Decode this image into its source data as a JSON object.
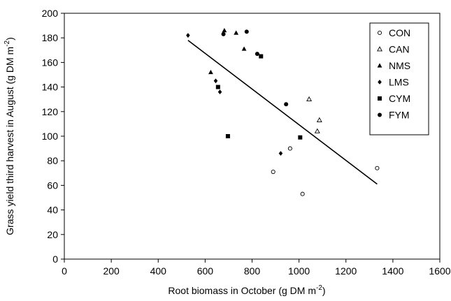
{
  "chart_data": {
    "type": "scatter",
    "title": "",
    "xlabel": "Root biomass in October (g DM m",
    "xlabel_sup": "-2",
    "xlabel_end": ")",
    "ylabel": "Grass yield third harvest in August (g DM m",
    "ylabel_sup": "-2",
    "ylabel_end": ")",
    "xlim": [
      0,
      1600
    ],
    "ylim": [
      0,
      200
    ],
    "xticks": [
      "0",
      "200",
      "400",
      "600",
      "800",
      "1000",
      "1200",
      "1400",
      "1600"
    ],
    "yticks": [
      "0",
      "20",
      "40",
      "60",
      "80",
      "100",
      "120",
      "140",
      "160",
      "180",
      "200"
    ],
    "grid": false,
    "legend_position": "top-right",
    "series": [
      {
        "name": "CON",
        "marker": "open-circle",
        "points": [
          [
            890,
            71
          ],
          [
            962,
            90
          ],
          [
            1015,
            53
          ],
          [
            1333,
            74
          ]
        ]
      },
      {
        "name": "CAN",
        "marker": "open-triangle",
        "points": [
          [
            1043,
            130
          ],
          [
            1087,
            113
          ],
          [
            1078,
            104
          ]
        ]
      },
      {
        "name": "NMS",
        "marker": "filled-triangle",
        "points": [
          [
            624,
            152
          ],
          [
            682,
            186
          ],
          [
            732,
            184
          ],
          [
            766,
            171
          ]
        ]
      },
      {
        "name": "LMS",
        "marker": "filled-diamond",
        "points": [
          [
            527,
            182
          ],
          [
            645,
            145
          ],
          [
            663,
            136
          ],
          [
            922,
            86
          ]
        ]
      },
      {
        "name": "CYM",
        "marker": "filled-square",
        "points": [
          [
            655,
            140
          ],
          [
            697,
            100
          ],
          [
            838,
            165
          ],
          [
            1005,
            99
          ]
        ]
      },
      {
        "name": "FYM",
        "marker": "filled-circle",
        "points": [
          [
            678,
            183
          ],
          [
            777,
            185
          ],
          [
            822,
            167
          ],
          [
            945,
            126
          ]
        ]
      }
    ],
    "trendline": {
      "x": [
        527,
        1333
      ],
      "y": [
        178,
        61
      ]
    }
  }
}
